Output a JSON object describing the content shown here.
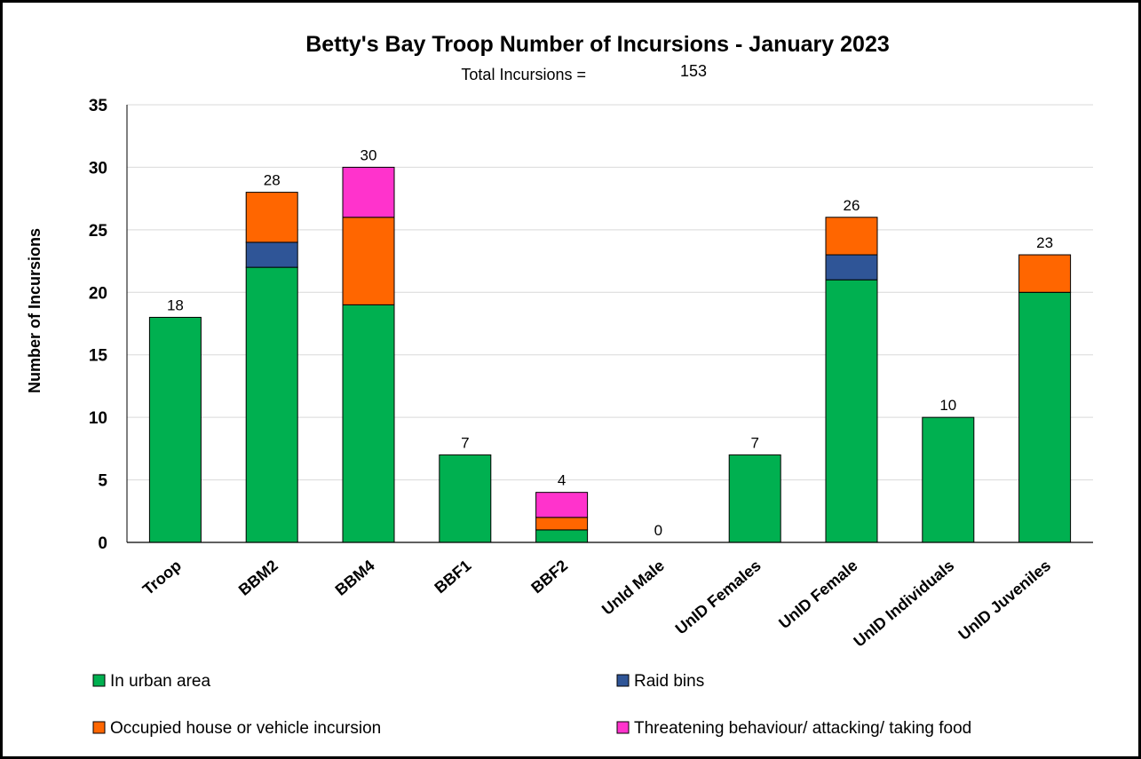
{
  "chart_data": {
    "type": "bar",
    "stacked": true,
    "title": "Betty's Bay Troop Number of Incursions - January 2023",
    "subtitle": "Total Incursions =",
    "subtitle_value": "153",
    "ylabel": "Number of Incursions",
    "xlabel": "",
    "ylim": [
      0,
      35
    ],
    "yticks": [
      0,
      5,
      10,
      15,
      20,
      25,
      30,
      35
    ],
    "grid": true,
    "legend_position": "bottom",
    "categories": [
      "Troop",
      "BBM2",
      "BBM4",
      "BBF1",
      "BBF2",
      "UnId Male",
      "UnID Females",
      "UnID Female",
      "UnID Individuals",
      "UnID Juveniles"
    ],
    "series": [
      {
        "name": "In urban area",
        "color": "#00B050",
        "values": [
          18,
          22,
          19,
          7,
          1,
          0,
          7,
          21,
          10,
          20
        ]
      },
      {
        "name": "Raid bins",
        "color": "#2F5597",
        "values": [
          0,
          2,
          0,
          0,
          0,
          0,
          0,
          2,
          0,
          0
        ]
      },
      {
        "name": "Occupied house or vehicle incursion",
        "color": "#FF6600",
        "values": [
          0,
          4,
          7,
          0,
          1,
          0,
          0,
          3,
          0,
          3
        ]
      },
      {
        "name": "Threatening behaviour/ attacking/ taking food",
        "color": "#FF33CC",
        "values": [
          0,
          0,
          4,
          0,
          2,
          0,
          0,
          0,
          0,
          0
        ]
      }
    ],
    "totals": [
      18,
      28,
      30,
      7,
      4,
      0,
      7,
      26,
      10,
      23
    ]
  }
}
